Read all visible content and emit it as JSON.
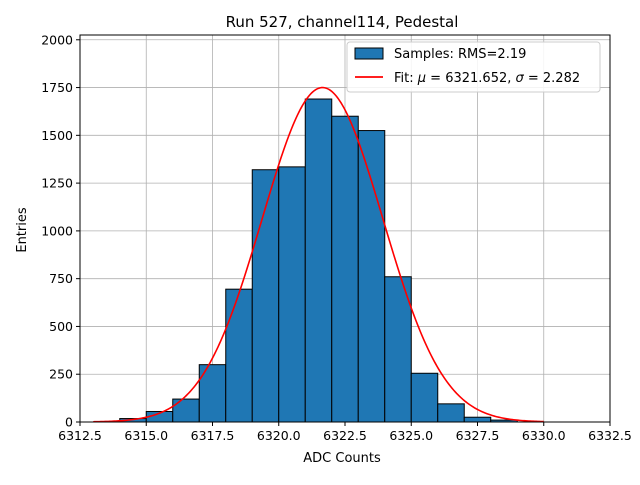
{
  "chart_data": {
    "type": "bar",
    "title": "Run 527, channel114, Pedestal",
    "xlabel": "ADC Counts",
    "ylabel": "Entries",
    "xlim": [
      6312.5,
      6332.5
    ],
    "ylim": [
      0,
      2025
    ],
    "grid": true,
    "legend_position": "upper right",
    "xticks": [
      6312.5,
      6315.0,
      6317.5,
      6320.0,
      6322.5,
      6325.0,
      6327.5,
      6330.0,
      6332.5
    ],
    "xtick_labels": [
      "6312.5",
      "6315.0",
      "6317.5",
      "6320.0",
      "6322.5",
      "6325.0",
      "6327.5",
      "6330.0",
      "6332.5"
    ],
    "yticks": [
      0,
      250,
      500,
      750,
      1000,
      1250,
      1500,
      1750,
      2000
    ],
    "ytick_labels": [
      "0",
      "250",
      "500",
      "750",
      "1000",
      "1250",
      "1500",
      "1750",
      "2000"
    ],
    "histogram": {
      "legend_label": "Samples: RMS=2.19",
      "color": "#1f77b4",
      "edge_color": "#000000",
      "bins": [
        {
          "x0": 6314,
          "x1": 6315,
          "count": 18
        },
        {
          "x0": 6315,
          "x1": 6316,
          "count": 55
        },
        {
          "x0": 6316,
          "x1": 6317,
          "count": 120
        },
        {
          "x0": 6317,
          "x1": 6318,
          "count": 300
        },
        {
          "x0": 6318,
          "x1": 6319,
          "count": 695
        },
        {
          "x0": 6319,
          "x1": 6320,
          "count": 1320
        },
        {
          "x0": 6320,
          "x1": 6321,
          "count": 1335
        },
        {
          "x0": 6321,
          "x1": 6322,
          "count": 1690
        },
        {
          "x0": 6322,
          "x1": 6323,
          "count": 1600
        },
        {
          "x0": 6323,
          "x1": 6324,
          "count": 1525
        },
        {
          "x0": 6324,
          "x1": 6325,
          "count": 760
        },
        {
          "x0": 6325,
          "x1": 6326,
          "count": 255
        },
        {
          "x0": 6326,
          "x1": 6327,
          "count": 95
        },
        {
          "x0": 6327,
          "x1": 6328,
          "count": 25
        },
        {
          "x0": 6328,
          "x1": 6329,
          "count": 10
        }
      ]
    },
    "fit": {
      "legend_label_prefix": "Fit: ",
      "mu_symbol": "μ",
      "sigma_symbol": "σ",
      "mu_text": " = 6321.652, ",
      "sigma_text": " = 2.282",
      "mu": 6321.652,
      "sigma": 2.282,
      "amplitude": 1750,
      "x_range": [
        6313,
        6330
      ],
      "color": "#ff0000"
    }
  }
}
